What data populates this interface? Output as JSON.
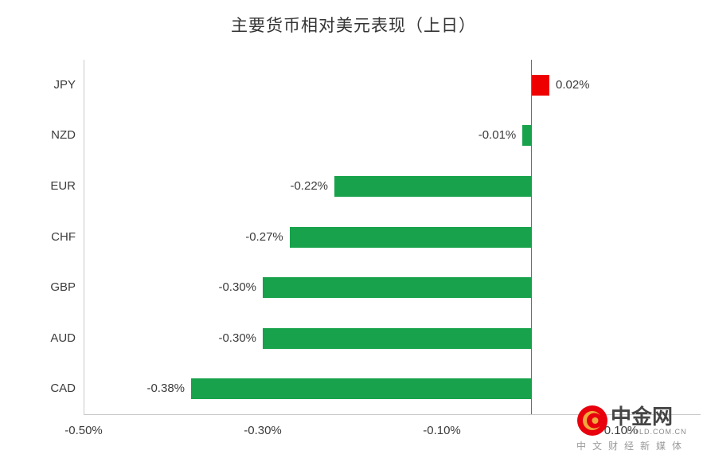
{
  "chart_data": {
    "type": "bar",
    "orientation": "horizontal",
    "title": "主要货币相对美元表现（上日）",
    "categories": [
      "JPY",
      "NZD",
      "EUR",
      "CHF",
      "GBP",
      "AUD",
      "CAD"
    ],
    "values": [
      0.02,
      -0.01,
      -0.22,
      -0.27,
      -0.3,
      -0.3,
      -0.38
    ],
    "value_labels": [
      "0.02%",
      "-0.01%",
      "-0.22%",
      "-0.27%",
      "-0.30%",
      "-0.30%",
      "-0.38%"
    ],
    "x_ticks": [
      {
        "label": "-0.50%",
        "value": -0.5
      },
      {
        "label": "-0.30%",
        "value": -0.3
      },
      {
        "label": "-0.10%",
        "value": -0.1
      },
      {
        "label": "0.10%",
        "value": 0.1
      }
    ],
    "xlim": [
      -0.5,
      0.1
    ],
    "positive_color": "#ee0000",
    "negative_color": "#17a24b",
    "grid": false,
    "legend": "none"
  },
  "watermark": {
    "brand": "中金网",
    "domain": "GOLD.COM.CN",
    "tagline": "中文财经新媒体",
    "logo_color": "#e8000d",
    "logo_accent": "#f0a93c"
  }
}
